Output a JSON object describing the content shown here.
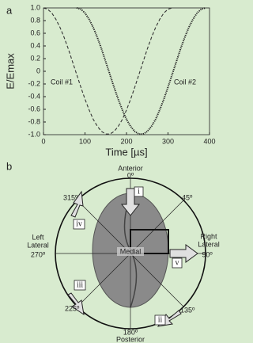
{
  "chart_data": {
    "type": "line",
    "x_label": "Time [µs]",
    "y_label": "E/Emax",
    "annotations": [
      "Coil #1",
      "Coil #2"
    ],
    "xlim": [
      0,
      400
    ],
    "xticks": [
      0,
      100,
      200,
      300,
      400
    ],
    "ylim": [
      -1,
      1
    ],
    "yticks": [
      {
        "value": 1,
        "label": "1.0"
      },
      0.8,
      0.6,
      0.4,
      0.2,
      0,
      -0.2,
      -0.4,
      -0.6,
      -0.8,
      {
        "value": -1,
        "label": "-1.0"
      }
    ],
    "series": [
      {
        "name": "Coil #1",
        "color": "#333333",
        "dash": "dashed",
        "x": [
          0,
          10,
          20,
          30,
          40,
          50,
          60,
          70,
          80,
          90,
          100,
          110,
          120,
          130,
          140,
          150,
          160,
          170,
          180,
          190,
          200,
          210,
          220,
          230,
          240,
          250,
          260,
          270,
          280,
          290,
          300,
          310
        ],
        "values": [
          1.0,
          0.98,
          0.92,
          0.82,
          0.69,
          0.53,
          0.35,
          0.15,
          -0.05,
          -0.25,
          -0.44,
          -0.61,
          -0.76,
          -0.87,
          -0.95,
          -0.99,
          -0.99,
          -0.95,
          -0.87,
          -0.76,
          -0.61,
          -0.44,
          -0.25,
          -0.05,
          0.15,
          0.35,
          0.53,
          0.69,
          0.82,
          0.92,
          0.98,
          1.0
        ]
      },
      {
        "name": "Coil #2",
        "color": "#222222",
        "dash": "dotted",
        "x": [
          80,
          90,
          100,
          110,
          120,
          130,
          140,
          150,
          160,
          170,
          180,
          190,
          200,
          210,
          220,
          230,
          240,
          250,
          260,
          270,
          280,
          290,
          300,
          310,
          320,
          330,
          340,
          350,
          360,
          370,
          380,
          390
        ],
        "values": [
          1.0,
          0.98,
          0.92,
          0.82,
          0.69,
          0.53,
          0.35,
          0.15,
          -0.05,
          -0.25,
          -0.44,
          -0.61,
          -0.76,
          -0.87,
          -0.95,
          -0.99,
          -0.99,
          -0.95,
          -0.87,
          -0.76,
          -0.61,
          -0.44,
          -0.25,
          -0.05,
          0.15,
          0.35,
          0.53,
          0.69,
          0.82,
          0.92,
          0.98,
          1.0
        ]
      }
    ]
  },
  "panel_labels": [
    "a",
    "b"
  ],
  "diagram": {
    "anterior": "Anterior",
    "deg0": "0º",
    "deg45": "45º",
    "right_lateral": [
      "Right",
      "Lateral"
    ],
    "deg90": "90º",
    "deg135": "135º",
    "deg180": "180º",
    "posterior": "Posterior",
    "deg225": "225º",
    "left_lateral": [
      "Left",
      "Lateral"
    ],
    "deg270": "270º",
    "deg315": "315º",
    "medial": "Medial",
    "coils": [
      "i",
      "ii",
      "iii",
      "iv",
      "v"
    ]
  }
}
